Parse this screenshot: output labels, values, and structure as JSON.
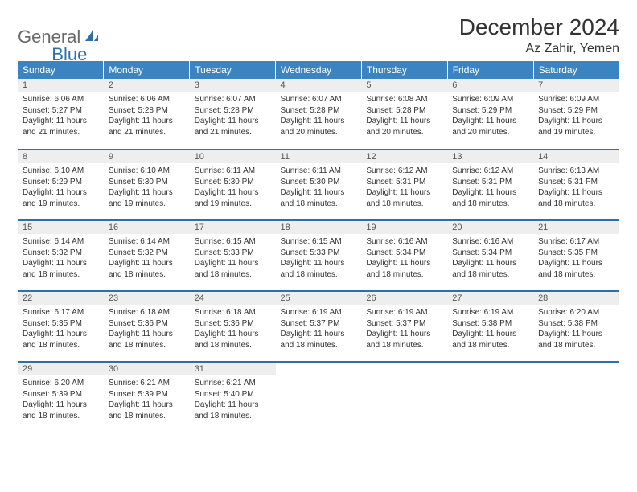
{
  "logo": {
    "part1": "General",
    "part2": "Blue"
  },
  "title": "December 2024",
  "location": "Az Zahir, Yemen",
  "colors": {
    "header_bg": "#3b84c4",
    "header_text": "#ffffff",
    "border": "#2f6fa8",
    "daynum_bg": "#eeeeee",
    "logo_gray": "#6a6a6a",
    "logo_blue": "#2f6fa8"
  },
  "weekdays": [
    "Sunday",
    "Monday",
    "Tuesday",
    "Wednesday",
    "Thursday",
    "Friday",
    "Saturday"
  ],
  "weeks": [
    [
      {
        "n": "1",
        "sunrise": "Sunrise: 6:06 AM",
        "sunset": "Sunset: 5:27 PM",
        "day": "Daylight: 11 hours and 21 minutes."
      },
      {
        "n": "2",
        "sunrise": "Sunrise: 6:06 AM",
        "sunset": "Sunset: 5:28 PM",
        "day": "Daylight: 11 hours and 21 minutes."
      },
      {
        "n": "3",
        "sunrise": "Sunrise: 6:07 AM",
        "sunset": "Sunset: 5:28 PM",
        "day": "Daylight: 11 hours and 21 minutes."
      },
      {
        "n": "4",
        "sunrise": "Sunrise: 6:07 AM",
        "sunset": "Sunset: 5:28 PM",
        "day": "Daylight: 11 hours and 20 minutes."
      },
      {
        "n": "5",
        "sunrise": "Sunrise: 6:08 AM",
        "sunset": "Sunset: 5:28 PM",
        "day": "Daylight: 11 hours and 20 minutes."
      },
      {
        "n": "6",
        "sunrise": "Sunrise: 6:09 AM",
        "sunset": "Sunset: 5:29 PM",
        "day": "Daylight: 11 hours and 20 minutes."
      },
      {
        "n": "7",
        "sunrise": "Sunrise: 6:09 AM",
        "sunset": "Sunset: 5:29 PM",
        "day": "Daylight: 11 hours and 19 minutes."
      }
    ],
    [
      {
        "n": "8",
        "sunrise": "Sunrise: 6:10 AM",
        "sunset": "Sunset: 5:29 PM",
        "day": "Daylight: 11 hours and 19 minutes."
      },
      {
        "n": "9",
        "sunrise": "Sunrise: 6:10 AM",
        "sunset": "Sunset: 5:30 PM",
        "day": "Daylight: 11 hours and 19 minutes."
      },
      {
        "n": "10",
        "sunrise": "Sunrise: 6:11 AM",
        "sunset": "Sunset: 5:30 PM",
        "day": "Daylight: 11 hours and 19 minutes."
      },
      {
        "n": "11",
        "sunrise": "Sunrise: 6:11 AM",
        "sunset": "Sunset: 5:30 PM",
        "day": "Daylight: 11 hours and 18 minutes."
      },
      {
        "n": "12",
        "sunrise": "Sunrise: 6:12 AM",
        "sunset": "Sunset: 5:31 PM",
        "day": "Daylight: 11 hours and 18 minutes."
      },
      {
        "n": "13",
        "sunrise": "Sunrise: 6:12 AM",
        "sunset": "Sunset: 5:31 PM",
        "day": "Daylight: 11 hours and 18 minutes."
      },
      {
        "n": "14",
        "sunrise": "Sunrise: 6:13 AM",
        "sunset": "Sunset: 5:31 PM",
        "day": "Daylight: 11 hours and 18 minutes."
      }
    ],
    [
      {
        "n": "15",
        "sunrise": "Sunrise: 6:14 AM",
        "sunset": "Sunset: 5:32 PM",
        "day": "Daylight: 11 hours and 18 minutes."
      },
      {
        "n": "16",
        "sunrise": "Sunrise: 6:14 AM",
        "sunset": "Sunset: 5:32 PM",
        "day": "Daylight: 11 hours and 18 minutes."
      },
      {
        "n": "17",
        "sunrise": "Sunrise: 6:15 AM",
        "sunset": "Sunset: 5:33 PM",
        "day": "Daylight: 11 hours and 18 minutes."
      },
      {
        "n": "18",
        "sunrise": "Sunrise: 6:15 AM",
        "sunset": "Sunset: 5:33 PM",
        "day": "Daylight: 11 hours and 18 minutes."
      },
      {
        "n": "19",
        "sunrise": "Sunrise: 6:16 AM",
        "sunset": "Sunset: 5:34 PM",
        "day": "Daylight: 11 hours and 18 minutes."
      },
      {
        "n": "20",
        "sunrise": "Sunrise: 6:16 AM",
        "sunset": "Sunset: 5:34 PM",
        "day": "Daylight: 11 hours and 18 minutes."
      },
      {
        "n": "21",
        "sunrise": "Sunrise: 6:17 AM",
        "sunset": "Sunset: 5:35 PM",
        "day": "Daylight: 11 hours and 18 minutes."
      }
    ],
    [
      {
        "n": "22",
        "sunrise": "Sunrise: 6:17 AM",
        "sunset": "Sunset: 5:35 PM",
        "day": "Daylight: 11 hours and 18 minutes."
      },
      {
        "n": "23",
        "sunrise": "Sunrise: 6:18 AM",
        "sunset": "Sunset: 5:36 PM",
        "day": "Daylight: 11 hours and 18 minutes."
      },
      {
        "n": "24",
        "sunrise": "Sunrise: 6:18 AM",
        "sunset": "Sunset: 5:36 PM",
        "day": "Daylight: 11 hours and 18 minutes."
      },
      {
        "n": "25",
        "sunrise": "Sunrise: 6:19 AM",
        "sunset": "Sunset: 5:37 PM",
        "day": "Daylight: 11 hours and 18 minutes."
      },
      {
        "n": "26",
        "sunrise": "Sunrise: 6:19 AM",
        "sunset": "Sunset: 5:37 PM",
        "day": "Daylight: 11 hours and 18 minutes."
      },
      {
        "n": "27",
        "sunrise": "Sunrise: 6:19 AM",
        "sunset": "Sunset: 5:38 PM",
        "day": "Daylight: 11 hours and 18 minutes."
      },
      {
        "n": "28",
        "sunrise": "Sunrise: 6:20 AM",
        "sunset": "Sunset: 5:38 PM",
        "day": "Daylight: 11 hours and 18 minutes."
      }
    ],
    [
      {
        "n": "29",
        "sunrise": "Sunrise: 6:20 AM",
        "sunset": "Sunset: 5:39 PM",
        "day": "Daylight: 11 hours and 18 minutes."
      },
      {
        "n": "30",
        "sunrise": "Sunrise: 6:21 AM",
        "sunset": "Sunset: 5:39 PM",
        "day": "Daylight: 11 hours and 18 minutes."
      },
      {
        "n": "31",
        "sunrise": "Sunrise: 6:21 AM",
        "sunset": "Sunset: 5:40 PM",
        "day": "Daylight: 11 hours and 18 minutes."
      },
      null,
      null,
      null,
      null
    ]
  ]
}
